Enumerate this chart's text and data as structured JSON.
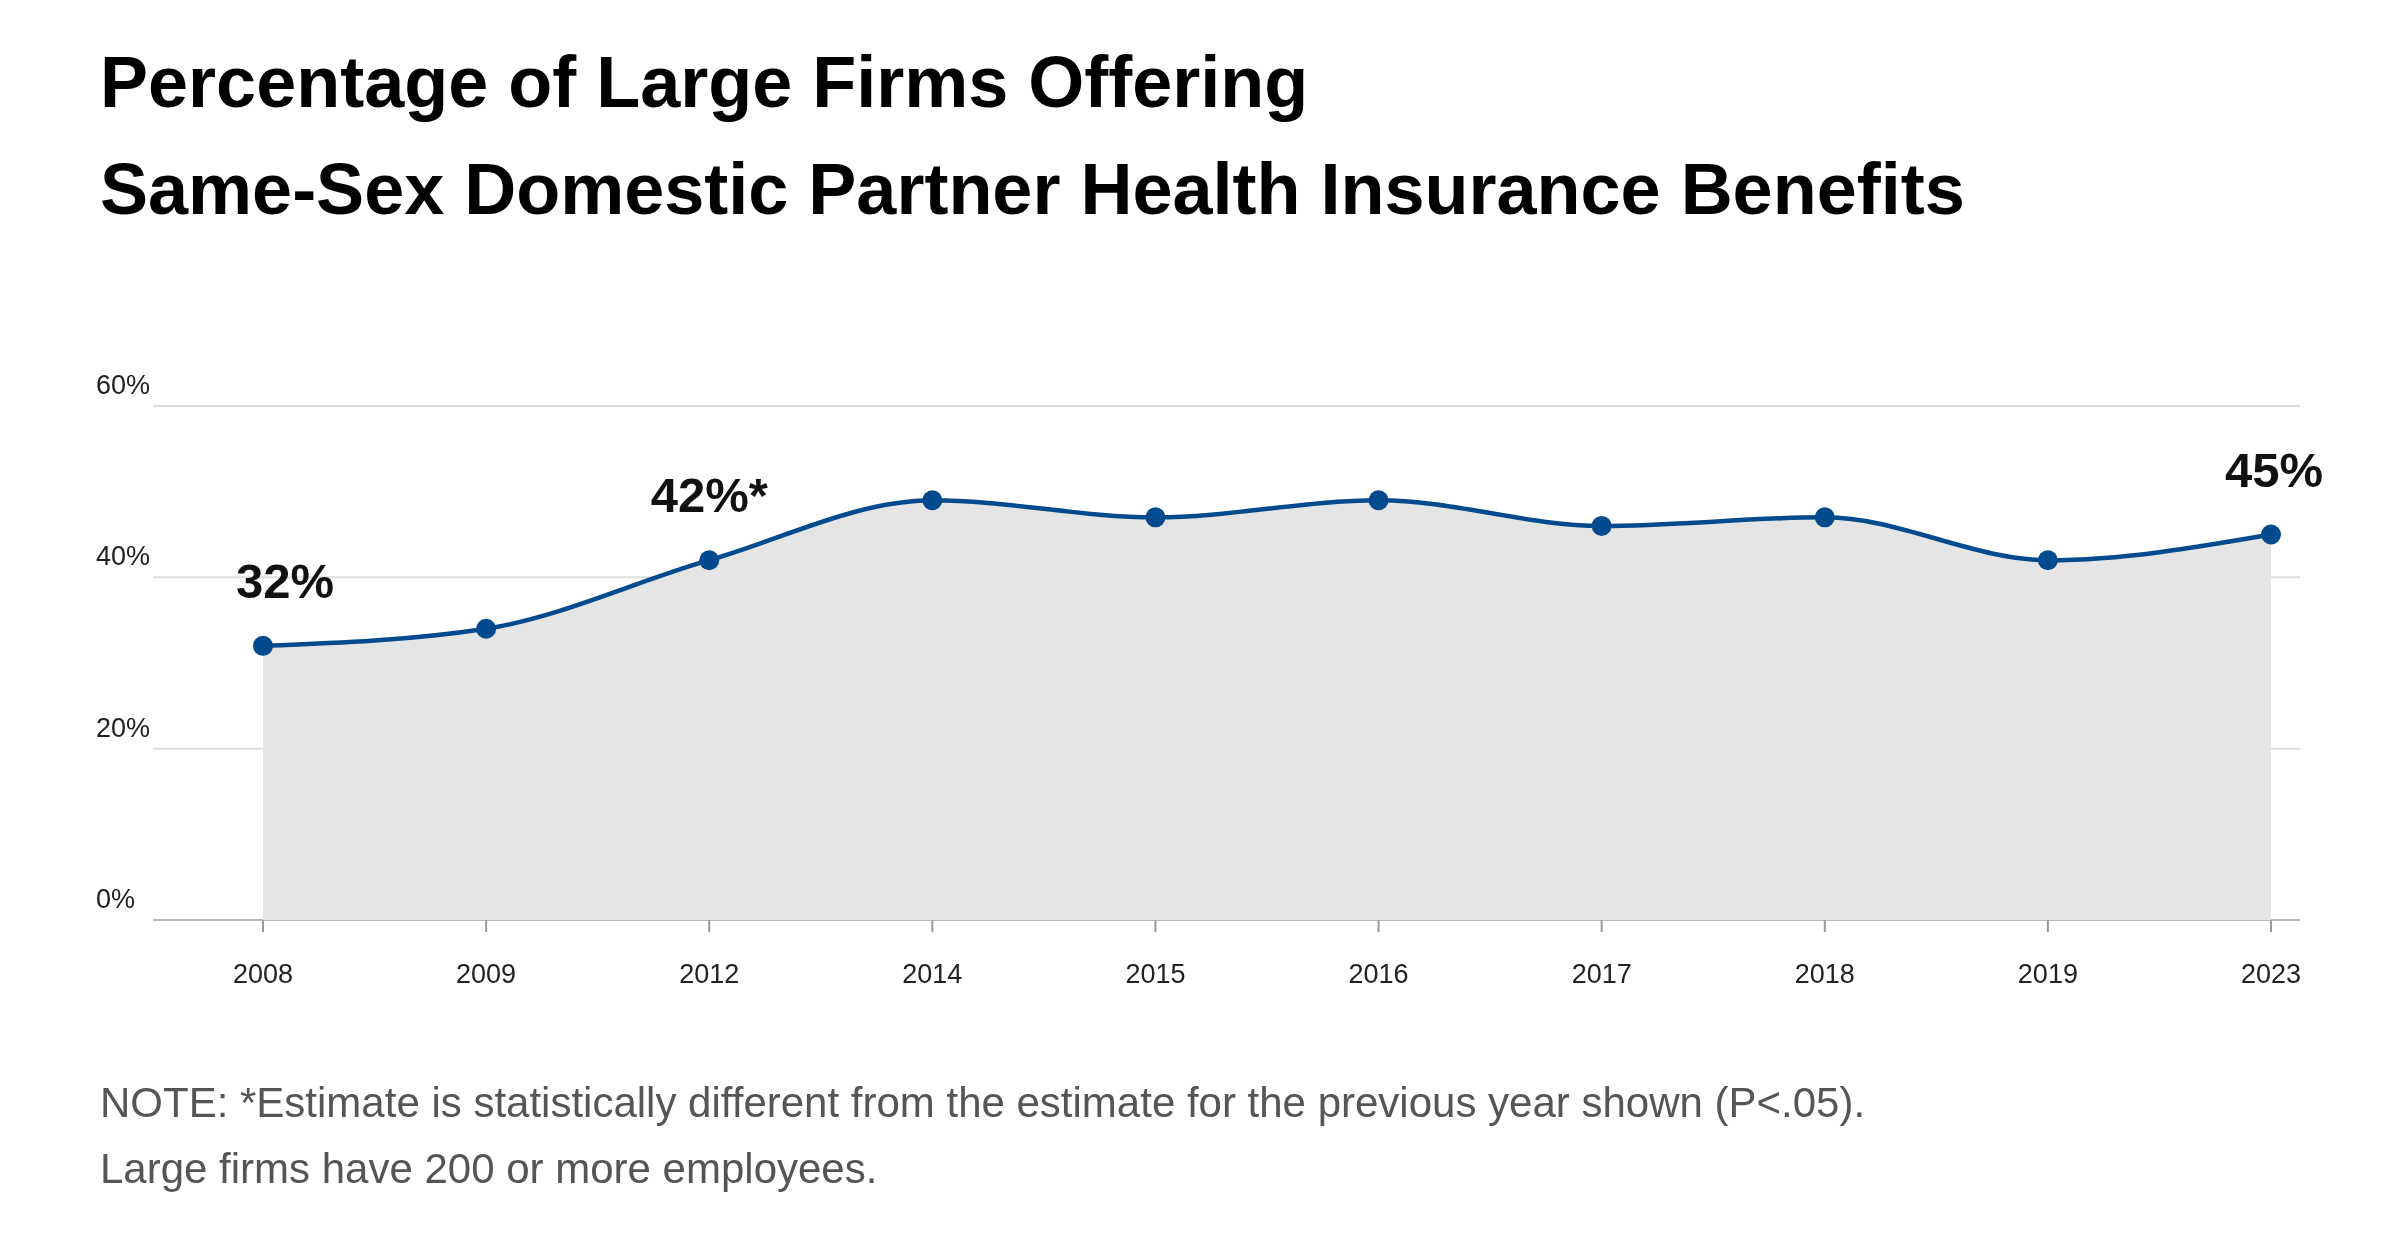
{
  "chart_data": {
    "type": "area",
    "title": "Percentage of Large Firms Offering\nSame-Sex Domestic Partner Health Insurance Benefits",
    "categories": [
      "2008",
      "2009",
      "2012",
      "2014",
      "2015",
      "2016",
      "2017",
      "2018",
      "2019",
      "2023"
    ],
    "series": [
      {
        "color": "#004a8d",
        "values": [
          32,
          34,
          42,
          49,
          47,
          49,
          46,
          47,
          42,
          45
        ],
        "value_labels": [
          "32%",
          null,
          "42%*",
          null,
          null,
          null,
          null,
          null,
          null,
          "45%"
        ]
      }
    ],
    "ylim": [
      0,
      60
    ],
    "yticks": [
      {
        "value": 0,
        "label": "0%"
      },
      {
        "value": 20,
        "label": "20%"
      },
      {
        "value": 40,
        "label": "40%"
      },
      {
        "value": 60,
        "label": "60%"
      }
    ],
    "grid": "y",
    "marker": "circle",
    "annotations": [
      "NOTE: *Estimate is statistically different from the estimate for the previous year shown (P<.05).\nLarge firms have 200 or more employees."
    ]
  }
}
